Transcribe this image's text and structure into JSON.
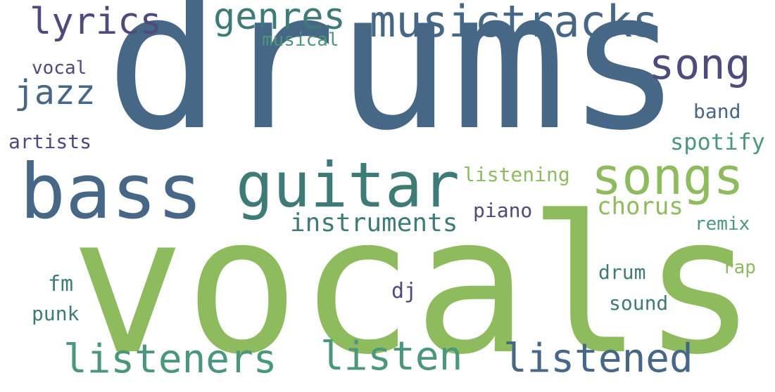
{
  "colors": {
    "dark_blue": "#466785",
    "purple": "#4d4a7c",
    "teal": "#3f7b76",
    "sea_green": "#4b977c",
    "light_green": "#8ebb5e"
  },
  "words": [
    {
      "id": "drums",
      "text": "drums",
      "color": "#466785"
    },
    {
      "id": "vocals",
      "text": "vocals",
      "color": "#8ebb5e"
    },
    {
      "id": "bass",
      "text": "bass",
      "color": "#466785"
    },
    {
      "id": "guitar",
      "text": "guitar",
      "color": "#3f7b76"
    },
    {
      "id": "songs",
      "text": "songs",
      "color": "#8ebb5e"
    },
    {
      "id": "song",
      "text": "song",
      "color": "#4d4a7c"
    },
    {
      "id": "musictracks",
      "text": "musictracks",
      "color": "#466785"
    },
    {
      "id": "lyrics",
      "text": "lyrics",
      "color": "#4d4a7c"
    },
    {
      "id": "genres",
      "text": "genres",
      "color": "#3f7b76"
    },
    {
      "id": "jazz",
      "text": "jazz",
      "color": "#466785"
    },
    {
      "id": "listeners",
      "text": "listeners",
      "color": "#4b977c"
    },
    {
      "id": "listen",
      "text": "listen",
      "color": "#4b977c"
    },
    {
      "id": "listened",
      "text": "listened",
      "color": "#466785"
    },
    {
      "id": "instruments",
      "text": "instruments",
      "color": "#3f7b76"
    },
    {
      "id": "chorus",
      "text": "chorus",
      "color": "#8ebb5e"
    },
    {
      "id": "musical",
      "text": "musical",
      "color": "#4b977c"
    },
    {
      "id": "vocal",
      "text": "vocal",
      "color": "#4d4a7c"
    },
    {
      "id": "artists",
      "text": "artists",
      "color": "#4d4a7c"
    },
    {
      "id": "band",
      "text": "band",
      "color": "#466785"
    },
    {
      "id": "spotify",
      "text": "spotify",
      "color": "#4b977c"
    },
    {
      "id": "listening",
      "text": "listening",
      "color": "#8ebb5e"
    },
    {
      "id": "piano",
      "text": "piano",
      "color": "#4d4a7c"
    },
    {
      "id": "remix",
      "text": "remix",
      "color": "#4b977c"
    },
    {
      "id": "rap",
      "text": "rap",
      "color": "#8ebb5e"
    },
    {
      "id": "drum",
      "text": "drum",
      "color": "#3f7b76"
    },
    {
      "id": "fm",
      "text": "fm",
      "color": "#3f7b76"
    },
    {
      "id": "dj",
      "text": "dj",
      "color": "#4d4a7c"
    },
    {
      "id": "punk",
      "text": "punk",
      "color": "#3f7b76"
    },
    {
      "id": "sound",
      "text": "sound",
      "color": "#3f7b76"
    }
  ]
}
